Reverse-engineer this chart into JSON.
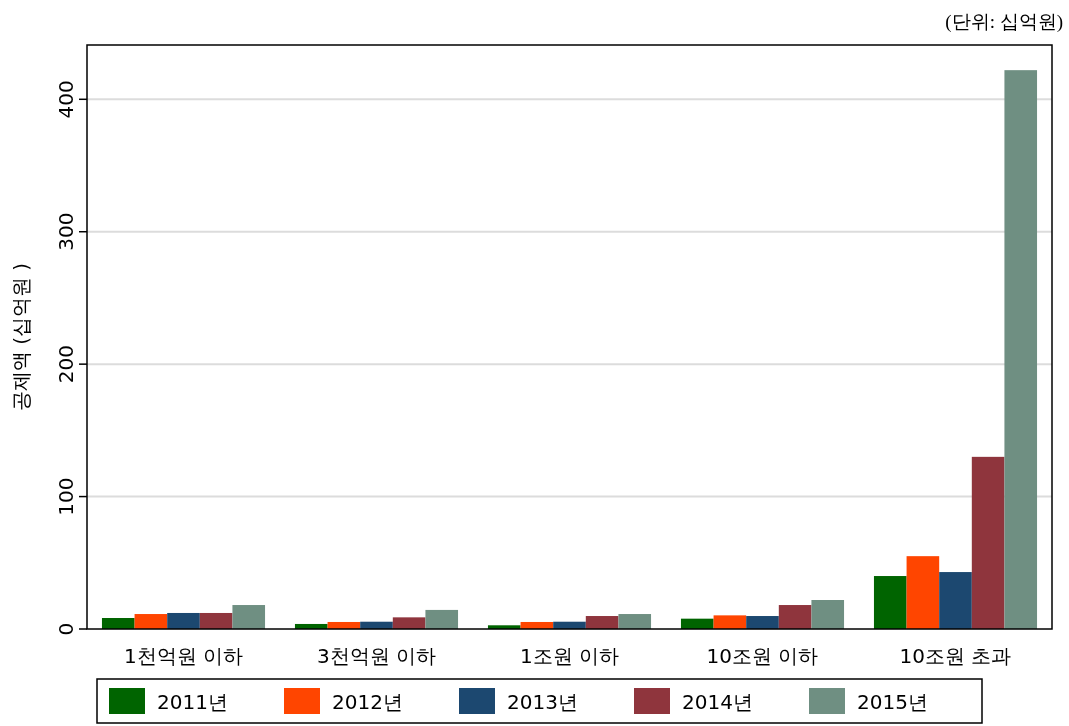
{
  "chart_data": {
    "type": "bar",
    "ylabel": "공제액 (십억원 )",
    "annotations": [
      "(단위: 십억원)"
    ],
    "categories": [
      "1천억원 이하",
      "3천억원 이하",
      "1조원 이하",
      "10조원 이하",
      "10조원 초과"
    ],
    "series": [
      {
        "name": "2011년",
        "color": "#006400",
        "values": [
          8.3,
          3.8,
          2.8,
          7.8,
          40
        ]
      },
      {
        "name": "2012년",
        "color": "#ff4500",
        "values": [
          11.3,
          5.3,
          5.3,
          10.3,
          55
        ]
      },
      {
        "name": "2013년",
        "color": "#1c4870",
        "values": [
          12.1,
          5.5,
          5.5,
          9.8,
          43
        ]
      },
      {
        "name": "2014년",
        "color": "#8f353d",
        "values": [
          12.1,
          8.8,
          9.8,
          18.1,
          130
        ]
      },
      {
        "name": "2015년",
        "color": "#6f8f82",
        "values": [
          18.1,
          14.4,
          11.3,
          21.9,
          422
        ]
      }
    ],
    "ylim": [
      0,
      441
    ],
    "yticks": [
      0,
      100,
      200,
      300,
      400
    ],
    "grid": "y",
    "legend": "bottom"
  }
}
